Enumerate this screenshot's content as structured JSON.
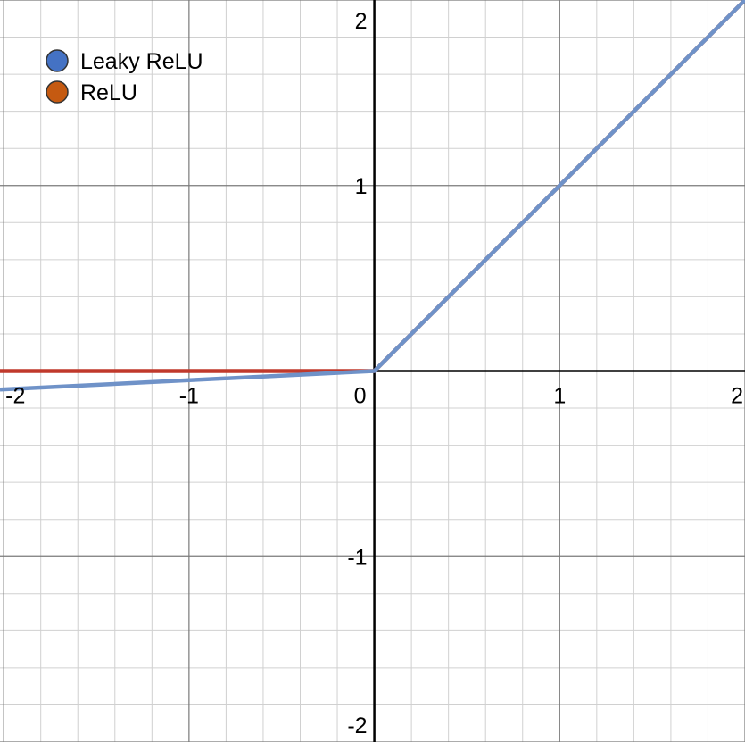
{
  "chart_data": {
    "type": "line",
    "xlim": [
      -2.02,
      2.0
    ],
    "ylim": [
      -2.0,
      2.0
    ],
    "grid": true,
    "minor_grid_step": 0.2,
    "major_grid_step": 1,
    "legend_position": "top-left",
    "x_ticks": [
      {
        "value": -2,
        "label": "-2"
      },
      {
        "value": -1,
        "label": "-1"
      },
      {
        "value": 0,
        "label": "0"
      },
      {
        "value": 1,
        "label": "1"
      },
      {
        "value": 2,
        "label": "2"
      }
    ],
    "y_ticks": [
      {
        "value": 2,
        "label": "2"
      },
      {
        "value": 1,
        "label": "1"
      },
      {
        "value": -1,
        "label": "-1"
      },
      {
        "value": -2,
        "label": "-2"
      }
    ],
    "series": [
      {
        "name": "ReLU",
        "color": "#c0392b",
        "marker_color": "#c55a11",
        "x": [
          -2.02,
          0,
          2.0
        ],
        "y": [
          0,
          0,
          2.0
        ]
      },
      {
        "name": "Leaky ReLU",
        "color": "#6f92c8",
        "marker_color": "#4472c4",
        "x": [
          -2.02,
          0,
          2.0
        ],
        "y": [
          -0.1,
          0,
          2.0
        ]
      }
    ],
    "legend": [
      {
        "label": "Leaky ReLU",
        "color": "#4472c4"
      },
      {
        "label": "ReLU",
        "color": "#c55a11"
      }
    ]
  }
}
